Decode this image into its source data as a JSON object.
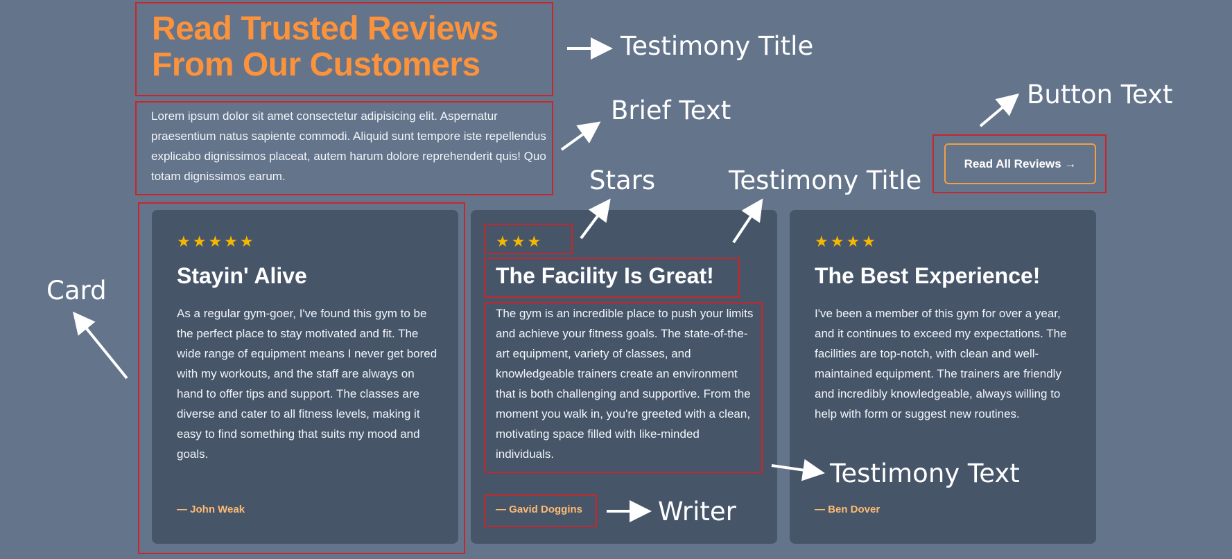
{
  "section": {
    "title_line1": "Read Trusted Reviews",
    "title_line2": "From Our Customers",
    "brief": "Lorem ipsum dolor sit amet consectetur adipisicing elit. Aspernatur praesentium natus sapiente commodi. Aliquid sunt tempore iste repellendus explicabo dignissimos placeat, autem harum dolore reprehenderit quis! Quo totam dignissimos earum.",
    "button_label": "Read All Reviews →"
  },
  "cards": [
    {
      "stars": "★★★★★",
      "rating": 5,
      "title": "Stayin' Alive",
      "text": "As a regular gym-goer, I've found this gym to be the perfect place to stay motivated and fit. The wide range of equipment means I never get bored with my workouts, and the staff are always on hand to offer tips and support. The classes are diverse and cater to all fitness levels, making it easy to find something that suits my mood and goals.",
      "writer": "— John Weak"
    },
    {
      "stars": "★★★",
      "rating": 3,
      "title": "The Facility Is Great!",
      "text": "The gym is an incredible place to push your limits and achieve your fitness goals. The state-of-the-art equipment, variety of classes, and knowledgeable trainers create an environment that is both challenging and supportive. From the moment you walk in, you're greeted with a clean, motivating space filled with like-minded individuals.",
      "writer": "— Gavid Doggins"
    },
    {
      "stars": "★★★★",
      "rating": 4,
      "title": "The Best Experience!",
      "text": "I've been a member of this gym for over a year, and it continues to exceed my expectations. The facilities are top-notch, with clean and well-maintained equipment. The trainers are friendly and incredibly knowledgeable, always willing to help with form or suggest new routines.",
      "writer": "— Ben Dover"
    }
  ],
  "annotations": {
    "testimony_title_top": "Testimony Title",
    "brief_text": "Brief Text",
    "button_text": "Button Text",
    "stars": "Stars",
    "testimony_title_card": "Testimony Title",
    "card": "Card",
    "testimony_text": "Testimony Text",
    "writer": "Writer"
  },
  "colors": {
    "background": "#64748b",
    "card": "#475569",
    "title": "#fb923c",
    "star": "#f5b800",
    "button_border": "#f59e42",
    "writer": "#fdba74",
    "annotation_box": "#c8262c"
  }
}
